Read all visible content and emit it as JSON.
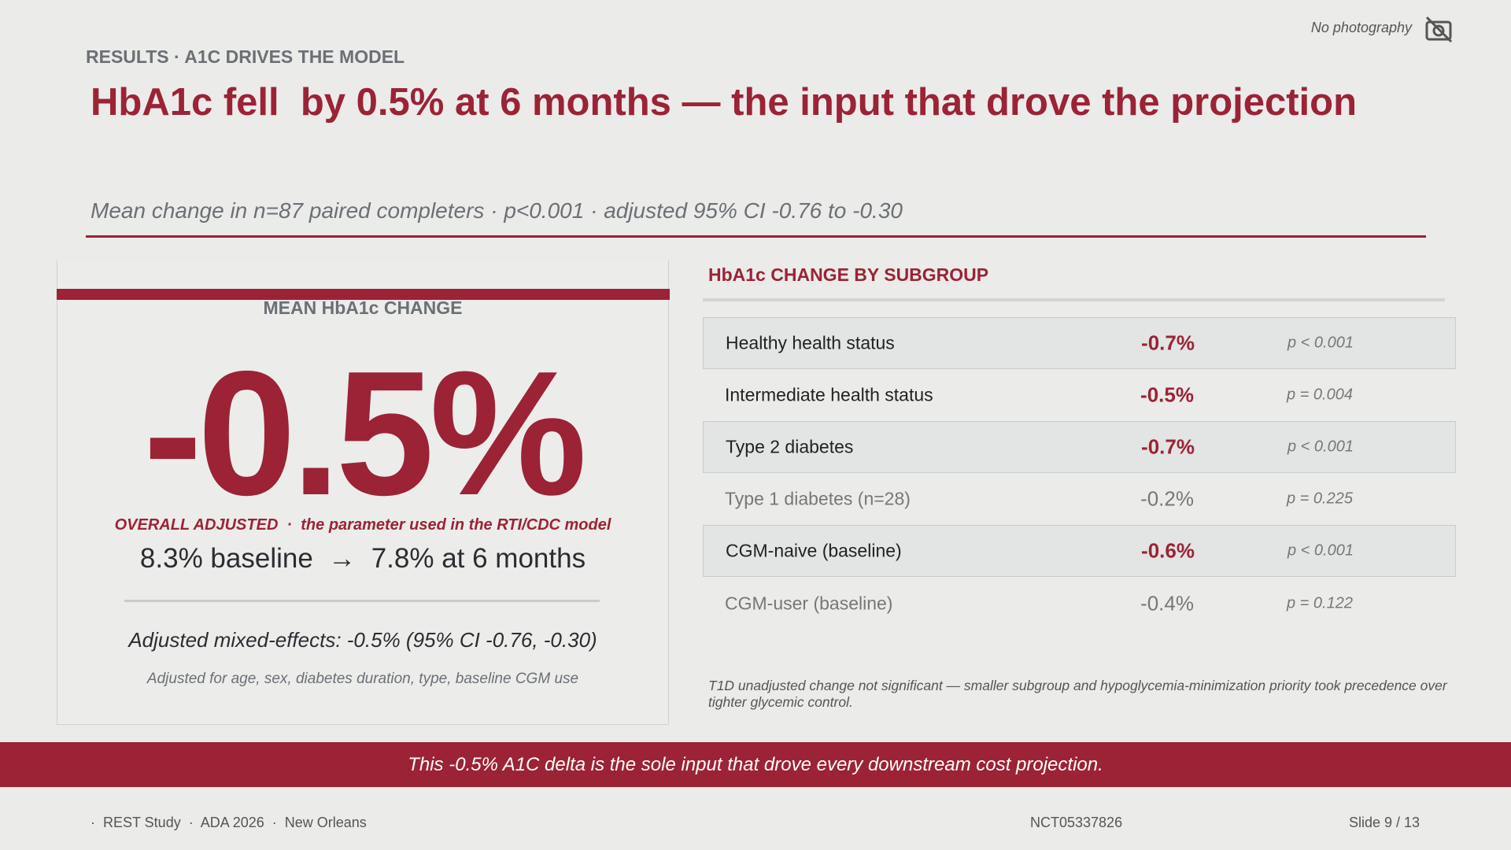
{
  "header": {
    "camera_note": "No photography",
    "eyebrow": "RESULTS · A1C DRIVES THE MODEL",
    "title": "HbA1c fell  by 0.5% at 6 months — the input that drove the projection",
    "subtitle": "Mean change in n=87 paired completers · p<0.001 · adjusted 95% CI -0.76 to -0.30"
  },
  "card": {
    "label": "MEAN HbA1c CHANGE",
    "big_value": "-0.5%",
    "caption": "OVERALL ADJUSTED  ·  the parameter used in the RTI/CDC model",
    "baseline": "8.3% baseline  →  7.8% at 6 months",
    "model": "Adjusted mixed-effects: -0.5% (95% CI -0.76, -0.30)",
    "adjustment": "Adjusted for age, sex, diabetes duration, type, baseline CGM use"
  },
  "table": {
    "title": "HbA1c CHANGE BY SUBGROUP",
    "rows": [
      [
        "Healthy health status",
        "-0.7%",
        "p < 0.001"
      ],
      [
        "Intermediate health status",
        "-0.5%",
        "p = 0.004"
      ],
      [
        "Type 2 diabetes",
        "-0.7%",
        "p < 0.001"
      ],
      [
        "Type 1 diabetes (n=28)",
        "-0.2%",
        "p = 0.225"
      ],
      [
        "CGM-naive (baseline)",
        "-0.6%",
        "p < 0.001"
      ],
      [
        "CGM-user (baseline)",
        "-0.4%",
        "p = 0.122"
      ]
    ],
    "footnote": "T1D unadjusted change not significant — smaller subgroup and hypoglycemia-minimization priority took precedence over tighter glycemic control."
  },
  "banner": "This -0.5% A1C delta is the sole input that drove every downstream cost projection.",
  "footer": {
    "study": "·  REST Study  ·  ADA 2026  ·  New Orleans",
    "trial_id": "NCT05337826",
    "slide": "Slide 9 / 13"
  }
}
